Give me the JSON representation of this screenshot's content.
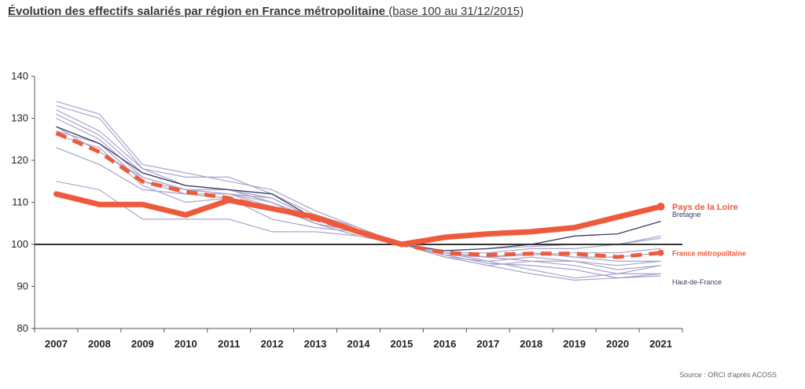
{
  "title": {
    "main": "Évolution des effectifs salariés par région en France métropolitaine",
    "sub": "(base 100 au 31/12/2015)"
  },
  "source": "Source : ORCI d'après ACOSS",
  "colors": {
    "highlight": "#ee5a3c",
    "regions": "#a8a6cc",
    "dark": "#3a3a6a",
    "baseline": "#333333"
  },
  "chart_data": {
    "type": "line",
    "title": "Évolution des effectifs salariés par région en France métropolitaine (base 100 au 31/12/2015)",
    "xlabel": "",
    "ylabel": "",
    "x": [
      "2007",
      "2008",
      "2009",
      "2010",
      "2011",
      "2012",
      "2013",
      "2014",
      "2015",
      "2016",
      "2017",
      "2018",
      "2019",
      "2020",
      "2021"
    ],
    "ylim": [
      80,
      140
    ],
    "yticks": [
      80,
      90,
      100,
      110,
      120,
      130,
      140
    ],
    "baseline": 100,
    "highlight_series": [
      {
        "name": "Pays de la Loire",
        "style": "thick-solid",
        "values": [
          112,
          109.5,
          109.5,
          107,
          110.5,
          108.5,
          106.5,
          103,
          100,
          101.7,
          102.5,
          103,
          104,
          106.5,
          109
        ]
      },
      {
        "name": "France métropolitaine",
        "style": "thick-dashed",
        "values": [
          126.5,
          122,
          115,
          112.5,
          111,
          108.5,
          106,
          103,
          100,
          98,
          97.5,
          97.8,
          97.8,
          97,
          98
        ]
      }
    ],
    "label_series": [
      {
        "name": "Bretagne",
        "values": [
          128,
          124,
          117,
          114,
          113,
          112,
          106,
          103,
          100,
          98.5,
          99,
          100,
          102,
          102.5,
          105.5
        ]
      },
      {
        "name": "Haut-de-France",
        "values": [
          123,
          119,
          113,
          112,
          111,
          106,
          104,
          103,
          100,
          97.5,
          95.5,
          95,
          94,
          92,
          93
        ]
      }
    ],
    "other_series": [
      {
        "values": [
          134,
          131,
          119,
          117,
          115,
          113,
          108,
          104,
          100,
          97.5,
          97,
          97.5,
          98,
          98,
          99
        ]
      },
      {
        "values": [
          133,
          130,
          118,
          116,
          116,
          112,
          107,
          104,
          100,
          97,
          96,
          94,
          92,
          93,
          95
        ]
      },
      {
        "values": [
          130,
          125,
          116,
          113,
          112,
          110,
          106,
          103,
          100,
          97,
          95,
          96,
          95,
          93,
          93
        ]
      },
      {
        "values": [
          132,
          127,
          118,
          114,
          113,
          110,
          105,
          103,
          100,
          98,
          97,
          98,
          97,
          96,
          96
        ]
      },
      {
        "values": [
          128,
          122,
          116,
          113,
          113,
          111,
          106,
          103,
          100,
          98,
          96,
          97,
          96,
          94,
          95
        ]
      },
      {
        "values": [
          115,
          113,
          106,
          106,
          106,
          103,
          103,
          102,
          100,
          98,
          98,
          99,
          99,
          100,
          102
        ]
      },
      {
        "values": [
          126,
          123,
          114,
          110,
          111,
          109,
          105,
          102,
          100,
          98,
          97,
          98,
          97,
          97,
          98
        ]
      },
      {
        "values": [
          131,
          126,
          117,
          114,
          113,
          110,
          106,
          103,
          100,
          98,
          97,
          96,
          96,
          95,
          96
        ]
      },
      {
        "values": [
          127,
          124,
          115,
          112,
          112,
          109,
          105,
          102,
          100,
          97,
          95,
          93,
          91.5,
          92,
          92.5
        ]
      },
      {
        "values": [
          128,
          124,
          115,
          113,
          112,
          111,
          106,
          103,
          100,
          98.5,
          99,
          99.5,
          100,
          100,
          101.5
        ]
      }
    ],
    "grid": false,
    "legend": "direct labels at right"
  }
}
